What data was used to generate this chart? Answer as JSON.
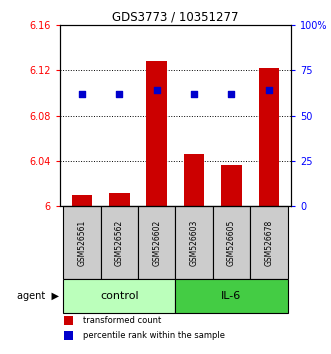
{
  "title": "GDS3773 / 10351277",
  "samples": [
    "GSM526561",
    "GSM526562",
    "GSM526602",
    "GSM526603",
    "GSM526605",
    "GSM526678"
  ],
  "bar_values": [
    6.01,
    6.012,
    6.128,
    6.046,
    6.036,
    6.122
  ],
  "percentile_values": [
    62,
    62,
    64,
    62,
    62,
    64
  ],
  "ylim_left": [
    6.0,
    6.16
  ],
  "ylim_right": [
    0,
    100
  ],
  "yticks_left": [
    6.0,
    6.04,
    6.08,
    6.12,
    6.16
  ],
  "yticks_right": [
    0,
    25,
    50,
    75,
    100
  ],
  "ytick_labels_left": [
    "6",
    "6.04",
    "6.08",
    "6.12",
    "6.16"
  ],
  "ytick_labels_right": [
    "0",
    "25",
    "50",
    "75",
    "100%"
  ],
  "bar_color": "#cc0000",
  "dot_color": "#0000cc",
  "bar_width": 0.55,
  "control_color": "#bbffbb",
  "il6_color": "#44cc44",
  "sample_box_color": "#cccccc",
  "legend": [
    {
      "label": "transformed count",
      "color": "#cc0000"
    },
    {
      "label": "percentile rank within the sample",
      "color": "#0000cc"
    }
  ]
}
